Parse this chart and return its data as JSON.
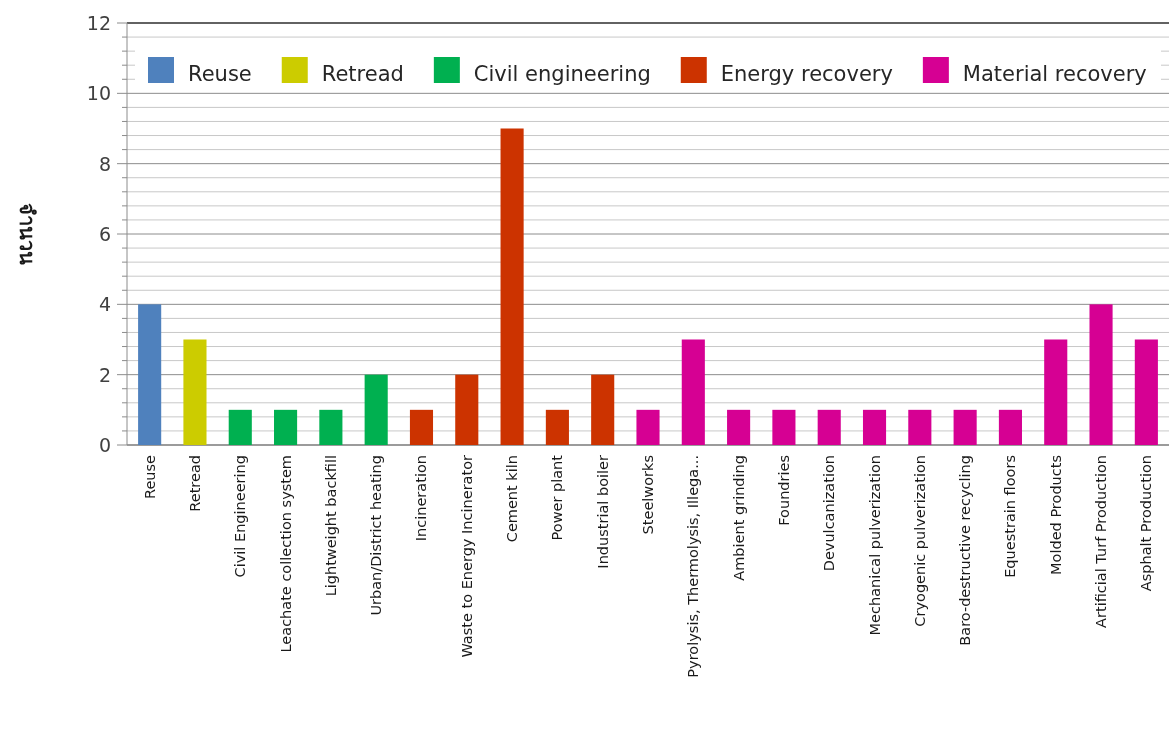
{
  "chart_data": {
    "type": "bar",
    "ylabel": "จำนวน",
    "categories": [
      "Reuse",
      "Retread",
      "Civil Engineering",
      "Leachate collection  system",
      "Lightweight backfill",
      "Urban/District heating",
      "Incineration",
      "Waste to Energy Incinerator",
      "Cement kiln",
      "Power plant",
      "Industrial boiler",
      "Steelworks",
      "Pyrolysis,  Thermolysis, Illega...",
      "Ambient grinding",
      "Foundries",
      "Devulcanization",
      "Mechanical pulverization",
      "Cryogenic pulverization",
      "Baro-destructive recycling",
      "Equestrain floors",
      "Molded Products",
      "Artificial Turf Production",
      "Asphalt Production"
    ],
    "series": [
      {
        "name": "Reuse",
        "color": "#4f81bd",
        "values": [
          4,
          null,
          null,
          null,
          null,
          null,
          null,
          null,
          null,
          null,
          null,
          null,
          null,
          null,
          null,
          null,
          null,
          null,
          null,
          null,
          null,
          null,
          null
        ]
      },
      {
        "name": "Retread",
        "color": "#cccc00",
        "values": [
          null,
          3,
          null,
          null,
          null,
          null,
          null,
          null,
          null,
          null,
          null,
          null,
          null,
          null,
          null,
          null,
          null,
          null,
          null,
          null,
          null,
          null,
          null
        ]
      },
      {
        "name": "Civil engineering",
        "color": "#00b050",
        "values": [
          null,
          null,
          1,
          1,
          1,
          2,
          null,
          null,
          null,
          null,
          null,
          null,
          null,
          null,
          null,
          null,
          null,
          null,
          null,
          null,
          null,
          null,
          null
        ]
      },
      {
        "name": "Energy recovery",
        "color": "#cc3300",
        "values": [
          null,
          null,
          null,
          null,
          null,
          null,
          1,
          2,
          9,
          1,
          2,
          null,
          null,
          null,
          null,
          null,
          null,
          null,
          null,
          null,
          null,
          null,
          null
        ]
      },
      {
        "name": "Material recovery",
        "color": "#d60093",
        "values": [
          null,
          null,
          null,
          null,
          null,
          null,
          null,
          null,
          null,
          null,
          null,
          1,
          3,
          1,
          1,
          1,
          1,
          1,
          1,
          1,
          3,
          4,
          3
        ]
      }
    ],
    "ylim": [
      0,
      12
    ],
    "yticks": [
      0,
      {
        "value": 0.4,
        "label": null
      },
      {
        "value": 0.8,
        "label": null
      },
      {
        "value": 1.2,
        "label": null
      },
      {
        "value": 1.6,
        "label": null
      },
      2,
      {
        "value": 2.4,
        "label": null
      },
      {
        "value": 2.8,
        "label": null
      },
      {
        "value": 3.2,
        "label": null
      },
      {
        "value": 3.6,
        "label": null
      },
      4,
      {
        "value": 4.4,
        "label": null
      },
      {
        "value": 4.8,
        "label": null
      },
      {
        "value": 5.2,
        "label": null
      },
      {
        "value": 5.6,
        "label": null
      },
      6,
      {
        "value": 6.4,
        "label": null
      },
      {
        "value": 6.8,
        "label": null
      },
      {
        "value": 7.2,
        "label": null
      },
      {
        "value": 7.6,
        "label": null
      },
      8,
      {
        "value": 8.4,
        "label": null
      },
      {
        "value": 8.8,
        "label": null
      },
      {
        "value": 9.2,
        "label": null
      },
      {
        "value": 9.6,
        "label": null
      },
      10,
      {
        "value": 10.4,
        "label": null
      },
      {
        "value": 10.8,
        "label": null
      },
      {
        "value": 11.2,
        "label": null
      },
      {
        "value": 11.6,
        "label": null
      },
      12
    ],
    "grid": "y",
    "legend": "top"
  }
}
